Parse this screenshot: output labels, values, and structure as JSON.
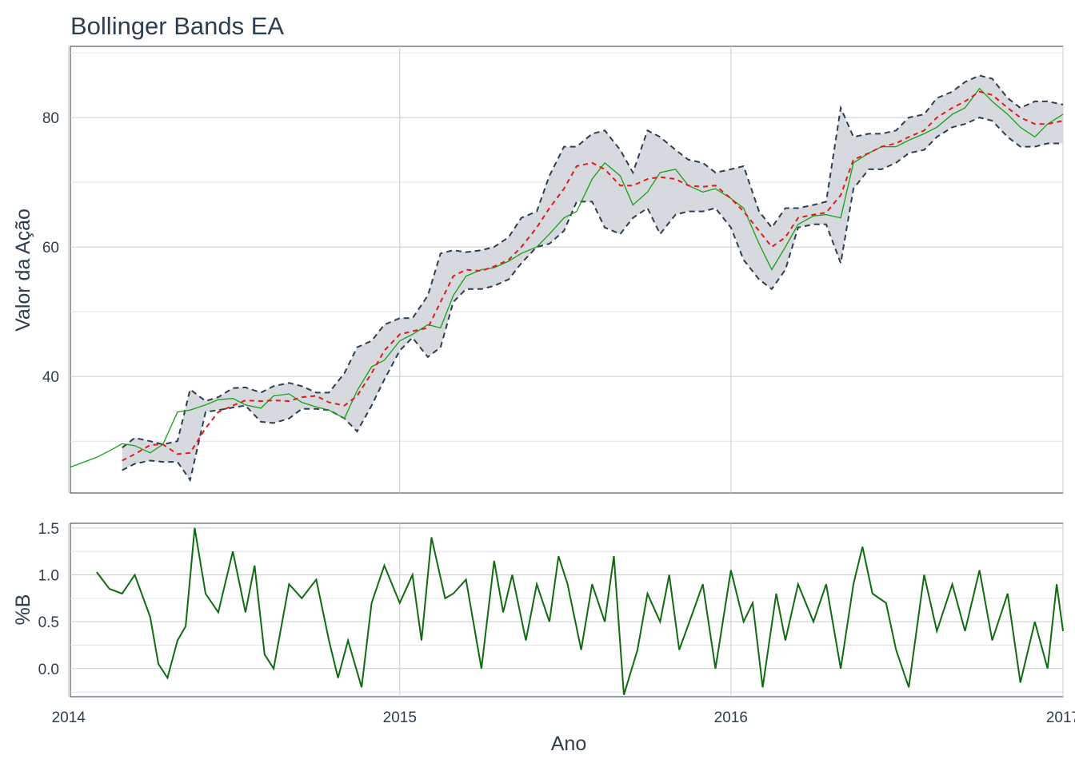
{
  "chart_data": [
    {
      "type": "line",
      "title": "Bollinger Bands EA",
      "xlabel": "",
      "ylabel": "Valor da Ação",
      "xlim": [
        "2014-01-03",
        "2017-01-01"
      ],
      "ylim": [
        22,
        91
      ],
      "x_ticks": [
        "2014",
        "2015",
        "2016",
        "2017"
      ],
      "y_ticks": [
        40,
        60,
        80
      ],
      "grid": true,
      "colors": {
        "band_fill": "#d6d9de",
        "band_edge": "#2c3e50",
        "middle": "#e31a1c",
        "price": "#18a018"
      },
      "series": [
        {
          "dates": [
            "2014-01-03",
            "2014-02-01",
            "2014-02-15",
            "2014-03-01",
            "2014-03-15",
            "2014-04-01",
            "2014-04-15",
            "2014-05-01",
            "2014-05-15",
            "2014-06-01",
            "2014-06-15",
            "2014-07-01",
            "2014-07-15",
            "2014-08-01",
            "2014-08-15",
            "2014-09-01",
            "2014-09-15",
            "2014-10-01",
            "2014-10-15",
            "2014-11-01",
            "2014-11-15",
            "2014-12-01",
            "2014-12-15",
            "2015-01-01",
            "2015-01-15",
            "2015-02-01",
            "2015-02-15",
            "2015-03-01",
            "2015-03-15",
            "2015-04-01",
            "2015-04-15",
            "2015-05-01",
            "2015-05-15",
            "2015-06-01",
            "2015-06-15",
            "2015-07-01",
            "2015-07-15",
            "2015-08-01",
            "2015-08-15",
            "2015-09-01",
            "2015-09-15",
            "2015-10-01",
            "2015-10-15",
            "2015-11-01",
            "2015-11-15",
            "2015-12-01",
            "2015-12-15",
            "2016-01-01",
            "2016-01-15",
            "2016-02-01",
            "2016-02-15",
            "2016-03-01",
            "2016-03-15",
            "2016-04-01",
            "2016-04-15",
            "2016-05-01",
            "2016-05-15",
            "2016-06-01",
            "2016-06-15",
            "2016-07-01",
            "2016-07-15",
            "2016-08-01",
            "2016-08-15",
            "2016-09-01",
            "2016-09-15",
            "2016-10-01",
            "2016-10-15",
            "2016-11-01",
            "2016-11-15",
            "2016-12-01",
            "2016-12-15",
            "2017-01-01"
          ],
          "price": [
            26.0,
            27.5,
            28.5,
            29.6,
            29.3,
            28.2,
            29.5,
            34.5,
            34.8,
            35.6,
            36.4,
            36.6,
            35.6,
            35.1,
            37.0,
            37.3,
            36.0,
            35.3,
            34.8,
            33.5,
            37.8,
            41.5,
            42.5,
            45.5,
            46.5,
            48.0,
            47.5,
            52.5,
            55.5,
            56.5,
            56.8,
            57.8,
            59.0,
            60.0,
            62.0,
            64.5,
            65.5,
            70.5,
            73.0,
            71.0,
            66.5,
            68.5,
            71.5,
            72.0,
            69.5,
            68.5,
            69.0,
            67.5,
            66.0,
            60.5,
            56.5,
            60.0,
            63.5,
            64.8,
            65.0,
            64.5,
            73.0,
            74.5,
            75.5,
            75.5,
            76.5,
            77.5,
            78.5,
            80.5,
            81.5,
            84.5,
            82.5,
            80.5,
            78.5,
            77.0,
            79.0,
            80.5
          ]
        },
        {
          "name": "",
          "dates": [
            "2014-03-01",
            "2014-03-15",
            "2014-04-01",
            "2014-04-15",
            "2014-05-01",
            "2014-05-15",
            "2014-06-01",
            "2014-06-15",
            "2014-07-01",
            "2014-07-15",
            "2014-08-01",
            "2014-08-15",
            "2014-09-01",
            "2014-09-15",
            "2014-10-01",
            "2014-10-15",
            "2014-11-01",
            "2014-11-15",
            "2014-12-01",
            "2014-12-15",
            "2015-01-01",
            "2015-01-15",
            "2015-02-01",
            "2015-02-15",
            "2015-03-01",
            "2015-03-15",
            "2015-04-01",
            "2015-04-15",
            "2015-05-01",
            "2015-05-15",
            "2015-06-01",
            "2015-06-15",
            "2015-07-01",
            "2015-07-15",
            "2015-08-01",
            "2015-08-15",
            "2015-09-01",
            "2015-09-15",
            "2015-10-01",
            "2015-10-15",
            "2015-11-01",
            "2015-11-15",
            "2015-12-01",
            "2015-12-15",
            "2016-01-01",
            "2016-01-15",
            "2016-02-01",
            "2016-02-15",
            "2016-03-01",
            "2016-03-15",
            "2016-04-01",
            "2016-04-15",
            "2016-05-01",
            "2016-05-15",
            "2016-06-01",
            "2016-06-15",
            "2016-07-01",
            "2016-07-15",
            "2016-08-01",
            "2016-08-15",
            "2016-09-01",
            "2016-09-15",
            "2016-10-01",
            "2016-10-15",
            "2016-11-01",
            "2016-11-15",
            "2016-12-01",
            "2016-12-15",
            "2017-01-01"
          ],
          "upper": [
            29.0,
            30.5,
            30.0,
            29.5,
            30.0,
            38.0,
            36.2,
            36.8,
            38.2,
            38.3,
            37.5,
            38.5,
            39.0,
            38.5,
            37.5,
            37.5,
            40.5,
            44.5,
            45.5,
            48.0,
            49.0,
            49.0,
            52.5,
            59.0,
            59.5,
            59.2,
            59.5,
            60.0,
            61.5,
            64.5,
            65.5,
            71.0,
            75.5,
            75.5,
            77.5,
            78.0,
            75.0,
            71.5,
            78.0,
            77.0,
            75.0,
            73.5,
            73.0,
            71.5,
            72.0,
            72.5,
            65.5,
            63.0,
            66.0,
            66.0,
            66.5,
            67.0,
            81.5,
            77.0,
            77.5,
            77.5,
            78.0,
            80.0,
            80.5,
            83.0,
            84.0,
            85.5,
            86.5,
            86.0,
            83.0,
            81.5,
            82.5,
            82.5,
            82.0
          ],
          "middle": [
            27.0,
            28.0,
            29.4,
            29.5,
            28.0,
            28.2,
            32.0,
            34.5,
            35.5,
            36.3,
            36.2,
            36.3,
            36.2,
            36.8,
            37.0,
            36.0,
            35.5,
            37.0,
            40.5,
            44.0,
            46.5,
            47.0,
            47.5,
            51.5,
            55.5,
            56.5,
            56.3,
            57.0,
            58.0,
            60.0,
            63.0,
            66.0,
            69.0,
            72.5,
            73.0,
            72.0,
            69.5,
            69.5,
            70.5,
            70.8,
            70.5,
            69.5,
            69.3,
            69.5,
            67.5,
            65.5,
            62.5,
            60.0,
            61.5,
            64.5,
            65.0,
            65.3,
            68.0,
            73.5,
            74.5,
            75.5,
            76.0,
            77.0,
            78.0,
            80.0,
            81.5,
            82.5,
            84.0,
            83.5,
            81.5,
            80.0,
            79.0,
            79.0,
            79.5
          ],
          "lower": [
            25.5,
            26.5,
            27.0,
            26.8,
            26.8,
            24.0,
            34.5,
            34.8,
            35.2,
            35.5,
            33.0,
            32.8,
            33.5,
            35.0,
            35.0,
            34.8,
            33.5,
            31.5,
            35.5,
            39.5,
            44.0,
            46.0,
            43.0,
            44.5,
            51.5,
            53.5,
            53.5,
            54.0,
            55.0,
            57.5,
            60.0,
            60.5,
            62.5,
            67.0,
            67.0,
            63.0,
            62.0,
            64.5,
            66.0,
            62.0,
            65.0,
            65.5,
            65.5,
            66.0,
            63.0,
            58.0,
            55.0,
            53.5,
            56.5,
            63.0,
            63.5,
            63.5,
            57.5,
            69.0,
            72.0,
            72.0,
            73.0,
            74.5,
            75.0,
            77.0,
            78.5,
            79.0,
            80.0,
            79.5,
            77.0,
            75.5,
            75.5,
            76.0,
            76.0
          ]
        }
      ]
    },
    {
      "type": "line",
      "title": "",
      "xlabel": "Ano",
      "ylabel": "%B",
      "xlim": [
        "2014-01-03",
        "2017-01-01"
      ],
      "ylim": [
        -0.3,
        1.55
      ],
      "x_ticks": [
        "2014",
        "2015",
        "2016",
        "2017"
      ],
      "y_ticks": [
        "0.0",
        "0.5",
        "1.0",
        "1.5"
      ],
      "grid": true,
      "colors": {
        "line": "#0f6b0f"
      },
      "series": [
        {
          "name": "",
          "dates": [
            "2014-02-01",
            "2014-02-15",
            "2014-03-01",
            "2014-03-15",
            "2014-04-01",
            "2014-04-10",
            "2014-04-20",
            "2014-05-01",
            "2014-05-10",
            "2014-05-20",
            "2014-06-01",
            "2014-06-15",
            "2014-07-01",
            "2014-07-15",
            "2014-07-25",
            "2014-08-05",
            "2014-08-15",
            "2014-09-01",
            "2014-09-15",
            "2014-10-01",
            "2014-10-15",
            "2014-10-25",
            "2014-11-05",
            "2014-11-20",
            "2014-12-01",
            "2014-12-15",
            "2015-01-01",
            "2015-01-15",
            "2015-01-25",
            "2015-02-05",
            "2015-02-20",
            "2015-03-01",
            "2015-03-15",
            "2015-04-01",
            "2015-04-15",
            "2015-04-25",
            "2015-05-05",
            "2015-05-20",
            "2015-06-01",
            "2015-06-15",
            "2015-06-25",
            "2015-07-05",
            "2015-07-20",
            "2015-08-01",
            "2015-08-15",
            "2015-08-25",
            "2015-09-05",
            "2015-09-20",
            "2015-10-01",
            "2015-10-15",
            "2015-10-25",
            "2015-11-05",
            "2015-11-20",
            "2015-12-01",
            "2015-12-15",
            "2016-01-01",
            "2016-01-15",
            "2016-01-25",
            "2016-02-05",
            "2016-02-20",
            "2016-03-01",
            "2016-03-15",
            "2016-04-01",
            "2016-04-15",
            "2016-05-01",
            "2016-05-15",
            "2016-05-25",
            "2016-06-05",
            "2016-06-20",
            "2016-07-01",
            "2016-07-15",
            "2016-08-01",
            "2016-08-15",
            "2016-09-01",
            "2016-09-15",
            "2016-10-01",
            "2016-10-15",
            "2016-11-01",
            "2016-11-15",
            "2016-12-01",
            "2016-12-15",
            "2016-12-25",
            "2017-01-01"
          ],
          "values": [
            1.03,
            0.85,
            0.8,
            1.0,
            0.55,
            0.05,
            -0.1,
            0.3,
            0.45,
            1.5,
            0.8,
            0.6,
            1.25,
            0.6,
            1.1,
            0.15,
            0.0,
            0.9,
            0.75,
            0.95,
            0.3,
            -0.1,
            0.3,
            -0.2,
            0.7,
            1.1,
            0.7,
            1.0,
            0.3,
            1.4,
            0.75,
            0.8,
            0.95,
            0.0,
            1.15,
            0.6,
            1.0,
            0.3,
            0.9,
            0.5,
            1.2,
            0.9,
            0.2,
            0.9,
            0.5,
            1.2,
            -0.28,
            0.2,
            0.8,
            0.5,
            1.0,
            0.2,
            0.6,
            0.9,
            0.0,
            1.05,
            0.5,
            0.7,
            -0.2,
            0.8,
            0.3,
            0.9,
            0.5,
            0.9,
            0.0,
            0.9,
            1.3,
            0.8,
            0.7,
            0.2,
            -0.2,
            1.0,
            0.4,
            0.9,
            0.4,
            1.05,
            0.3,
            0.8,
            -0.15,
            0.5,
            0.0,
            0.9,
            0.4
          ]
        }
      ]
    }
  ]
}
